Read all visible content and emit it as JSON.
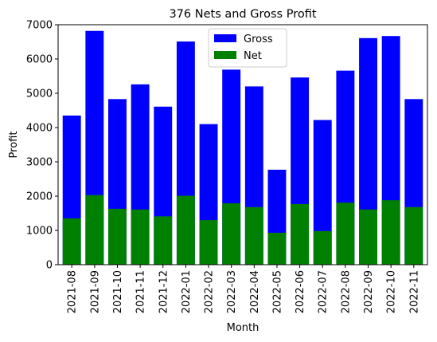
{
  "chart_data": {
    "type": "bar",
    "title": "376 Nets and Gross Profit",
    "xlabel": "Month",
    "ylabel": "Profit",
    "ylim": [
      0,
      7000
    ],
    "yticks": [
      0,
      1000,
      2000,
      3000,
      4000,
      5000,
      6000,
      7000
    ],
    "categories": [
      "2021-08",
      "2021-09",
      "2021-10",
      "2021-11",
      "2021-12",
      "2022-01",
      "2022-02",
      "2022-03",
      "2022-04",
      "2022-05",
      "2022-06",
      "2022-07",
      "2022-08",
      "2022-09",
      "2022-10",
      "2022-11"
    ],
    "series": [
      {
        "name": "Gross",
        "color": "#0000ff",
        "values": [
          4350,
          6820,
          4830,
          5260,
          4610,
          6510,
          4100,
          5690,
          5200,
          2770,
          5460,
          4220,
          5660,
          6610,
          6670,
          4830
        ]
      },
      {
        "name": "Net",
        "color": "#008000",
        "values": [
          1350,
          2030,
          1630,
          1610,
          1410,
          2010,
          1300,
          1790,
          1680,
          930,
          1770,
          980,
          1810,
          1610,
          1880,
          1680
        ]
      }
    ],
    "legend": "top-center",
    "grid": false
  }
}
